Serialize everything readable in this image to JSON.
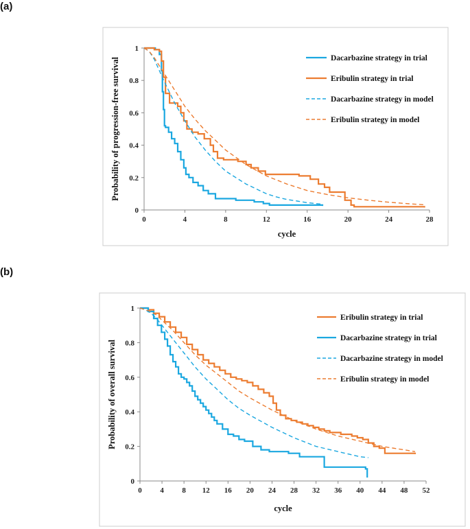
{
  "panels": {
    "a": "(a)",
    "b": "(b)"
  },
  "colors": {
    "blue": "#1aa7e0",
    "orange": "#ec7c30",
    "frame": "#cccccc",
    "axis": "#888888"
  },
  "chart_data": [
    {
      "type": "line",
      "xlabel": "cycle",
      "ylabel": "Probability of progression-free survival",
      "xlim": [
        0,
        28
      ],
      "ylim": [
        0,
        1
      ],
      "xticks": [
        0,
        4,
        8,
        12,
        16,
        20,
        24,
        28
      ],
      "yticks": [
        0,
        0.2,
        0.4,
        0.6,
        0.8,
        1
      ],
      "ytick_labels": [
        "0",
        "0.2",
        "0.4",
        "0.6",
        "0.8",
        "1"
      ],
      "series": [
        {
          "name": "Dacarbazine strategy in trial",
          "color": "blue",
          "style": "step",
          "x": [
            0,
            1.1,
            1.5,
            1.7,
            1.8,
            1.9,
            2.0,
            2.1,
            2.4,
            2.7,
            3.0,
            3.3,
            3.6,
            3.9,
            4.1,
            4.4,
            4.8,
            5.3,
            5.8,
            6.3,
            7.0,
            7.8,
            9.0,
            10.8,
            11.7,
            12.3,
            13.0,
            17.5
          ],
          "y": [
            1,
            0.99,
            0.96,
            0.86,
            0.73,
            0.62,
            0.52,
            0.51,
            0.48,
            0.44,
            0.41,
            0.36,
            0.31,
            0.26,
            0.22,
            0.2,
            0.17,
            0.15,
            0.12,
            0.1,
            0.07,
            0.07,
            0.06,
            0.05,
            0.04,
            0.03,
            0.03,
            0.025
          ]
        },
        {
          "name": "Eribulin strategy in trial",
          "color": "orange",
          "style": "step",
          "x": [
            0,
            1.0,
            1.5,
            1.7,
            1.9,
            2.1,
            2.5,
            3.0,
            3.3,
            3.6,
            3.9,
            4.2,
            4.7,
            5.3,
            5.9,
            6.5,
            6.8,
            7.2,
            7.8,
            9.2,
            10.0,
            10.5,
            11.2,
            11.9,
            13.5,
            15.2,
            16.3,
            17.1,
            17.7,
            18.2,
            19.7,
            20.3,
            20.6,
            27.5
          ],
          "y": [
            1,
            0.99,
            0.98,
            0.92,
            0.82,
            0.72,
            0.66,
            0.66,
            0.64,
            0.6,
            0.55,
            0.5,
            0.48,
            0.47,
            0.44,
            0.4,
            0.36,
            0.32,
            0.31,
            0.3,
            0.28,
            0.26,
            0.24,
            0.22,
            0.22,
            0.21,
            0.19,
            0.16,
            0.14,
            0.11,
            0.06,
            0.03,
            0.02,
            0.015
          ]
        },
        {
          "name": "Dacarbazine strategy in model",
          "color": "blue",
          "style": "dash",
          "x": [
            0,
            0.5,
            1,
            1.5,
            2,
            3,
            4,
            5,
            6,
            7,
            8,
            9,
            10,
            11,
            12,
            13,
            14,
            15,
            16,
            17.5
          ],
          "y": [
            1,
            0.98,
            0.93,
            0.86,
            0.79,
            0.66,
            0.55,
            0.45,
            0.37,
            0.3,
            0.24,
            0.2,
            0.16,
            0.13,
            0.1,
            0.08,
            0.065,
            0.055,
            0.045,
            0.035
          ]
        },
        {
          "name": "Eribulin strategy in model",
          "color": "orange",
          "style": "dash",
          "x": [
            0,
            0.5,
            1,
            1.5,
            2,
            3,
            4,
            5,
            6,
            7,
            8,
            10,
            12,
            14,
            16,
            18,
            20,
            22,
            24,
            26,
            27.5
          ],
          "y": [
            1,
            0.98,
            0.94,
            0.89,
            0.84,
            0.74,
            0.64,
            0.56,
            0.49,
            0.43,
            0.37,
            0.28,
            0.21,
            0.16,
            0.12,
            0.095,
            0.075,
            0.06,
            0.048,
            0.038,
            0.032
          ]
        }
      ],
      "legend": [
        {
          "label": "Dacarbazine strategy in trial",
          "color": "blue",
          "style": "solid"
        },
        {
          "label": "Eribulin strategy in trial",
          "color": "orange",
          "style": "solid"
        },
        {
          "label": "Dacarbazine strategy in model",
          "color": "blue",
          "style": "dash"
        },
        {
          "label": "Eribulin strategy in model",
          "color": "orange",
          "style": "dash"
        }
      ]
    },
    {
      "type": "line",
      "xlabel": "cycle",
      "ylabel": "Probability of  overall survival",
      "xlim": [
        0,
        52
      ],
      "ylim": [
        0,
        1
      ],
      "xticks": [
        0,
        4,
        8,
        12,
        16,
        20,
        24,
        28,
        32,
        36,
        40,
        44,
        48,
        52
      ],
      "yticks": [
        0,
        0.2,
        0.4,
        0.6,
        0.8,
        1
      ],
      "ytick_labels": [
        "0",
        "0.2",
        "0.4",
        "0.6",
        "0.8",
        "1"
      ],
      "series": [
        {
          "name": "Eribulin strategy in trial",
          "color": "orange",
          "style": "step",
          "x": [
            0,
            1.5,
            2.5,
            3.5,
            4.5,
            5.5,
            6.5,
            7.5,
            8.5,
            9.5,
            10.5,
            11.5,
            12.5,
            13.5,
            14.5,
            15.5,
            16.5,
            17.5,
            18.5,
            19.5,
            20.5,
            21.5,
            22.5,
            23.5,
            24.2,
            24.8,
            25.5,
            26.5,
            27.5,
            28.5,
            29.5,
            30.5,
            31.5,
            32.5,
            33.5,
            34.5,
            35.5,
            36.5,
            37.5,
            38.5,
            39.5,
            40.5,
            41.5,
            42.5,
            43.5,
            44.5,
            46.5,
            48.5,
            50
          ],
          "y": [
            1,
            0.99,
            0.97,
            0.95,
            0.92,
            0.89,
            0.86,
            0.83,
            0.79,
            0.76,
            0.73,
            0.7,
            0.68,
            0.66,
            0.64,
            0.62,
            0.6,
            0.59,
            0.58,
            0.57,
            0.55,
            0.53,
            0.51,
            0.49,
            0.45,
            0.41,
            0.38,
            0.36,
            0.35,
            0.34,
            0.33,
            0.32,
            0.31,
            0.3,
            0.29,
            0.28,
            0.28,
            0.27,
            0.27,
            0.26,
            0.25,
            0.24,
            0.22,
            0.2,
            0.19,
            0.16,
            0.16,
            0.16,
            0.155
          ]
        },
        {
          "name": "Dacarbazine strategy in trial",
          "color": "blue",
          "style": "step",
          "x": [
            0,
            1.5,
            2.5,
            3.2,
            3.9,
            4.5,
            5.0,
            5.5,
            6.0,
            6.5,
            7.0,
            7.5,
            8.0,
            8.5,
            9.0,
            9.5,
            10.0,
            10.5,
            11.0,
            11.5,
            12.0,
            12.5,
            13.0,
            13.5,
            14.0,
            15.0,
            16.0,
            17.0,
            18.0,
            19.0,
            20.5,
            22.0,
            23.5,
            25.0,
            27.0,
            29.0,
            33.5,
            40.5,
            41.0,
            41.3
          ],
          "y": [
            1,
            0.98,
            0.94,
            0.9,
            0.86,
            0.82,
            0.78,
            0.73,
            0.69,
            0.66,
            0.62,
            0.6,
            0.59,
            0.57,
            0.55,
            0.52,
            0.49,
            0.47,
            0.45,
            0.43,
            0.41,
            0.39,
            0.37,
            0.35,
            0.33,
            0.3,
            0.27,
            0.26,
            0.24,
            0.23,
            0.2,
            0.18,
            0.17,
            0.17,
            0.16,
            0.14,
            0.08,
            0.08,
            0.07,
            0.02
          ]
        },
        {
          "name": "Dacarbazine strategy in model",
          "color": "blue",
          "style": "dash",
          "x": [
            0,
            1,
            2,
            3,
            4,
            6,
            8,
            10,
            12,
            14,
            16,
            18,
            20,
            24,
            28,
            32,
            36,
            40,
            41.5
          ],
          "y": [
            1,
            0.99,
            0.97,
            0.94,
            0.9,
            0.82,
            0.74,
            0.66,
            0.59,
            0.53,
            0.47,
            0.42,
            0.38,
            0.31,
            0.25,
            0.2,
            0.17,
            0.14,
            0.135
          ]
        },
        {
          "name": "Eribulin strategy in model",
          "color": "orange",
          "style": "dash",
          "x": [
            0,
            1,
            2,
            3,
            4,
            6,
            8,
            10,
            12,
            14,
            16,
            18,
            20,
            24,
            28,
            32,
            36,
            40,
            44,
            48,
            50
          ],
          "y": [
            1,
            0.99,
            0.98,
            0.96,
            0.93,
            0.87,
            0.8,
            0.73,
            0.67,
            0.62,
            0.57,
            0.52,
            0.48,
            0.41,
            0.35,
            0.3,
            0.26,
            0.23,
            0.2,
            0.18,
            0.17
          ]
        }
      ],
      "legend": [
        {
          "label": "Eribulin strategy in trial",
          "color": "orange",
          "style": "solid"
        },
        {
          "label": "Dacarbazine strategy in trial",
          "color": "blue",
          "style": "solid"
        },
        {
          "label": "Dacarbazine strategy in model",
          "color": "blue",
          "style": "dash"
        },
        {
          "label": "Eribulin strategy in model",
          "color": "orange",
          "style": "dash"
        }
      ]
    }
  ]
}
